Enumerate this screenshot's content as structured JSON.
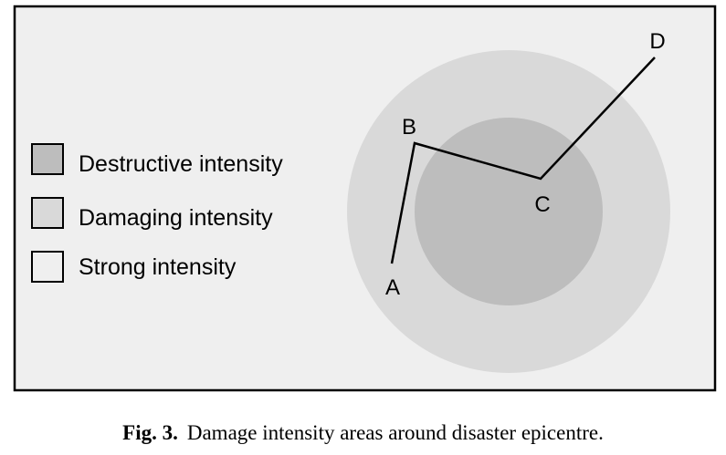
{
  "diagram": {
    "legend": [
      {
        "label": "Destructive intensity",
        "fill": "#bdbdbd"
      },
      {
        "label": "Damaging intensity",
        "fill": "#d9d9d9"
      },
      {
        "label": "Strong intensity",
        "fill": "#efefef"
      }
    ],
    "points": {
      "A": "A",
      "B": "B",
      "C": "C",
      "D": "D"
    },
    "path_order": [
      "A",
      "B",
      "C",
      "D"
    ],
    "colors": {
      "background": "#efefef",
      "border": "#000000",
      "outer_zone": "#d9d9d9",
      "inner_zone": "#bdbdbd",
      "path_line": "#000000"
    }
  },
  "caption": {
    "label": "Fig. 3.",
    "text": "Damage intensity areas around disaster epicentre."
  }
}
